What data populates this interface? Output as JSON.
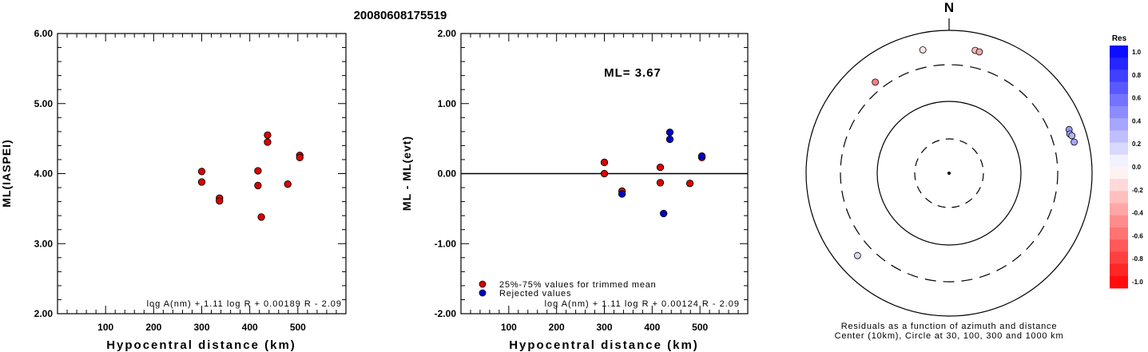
{
  "title": "20080608175519",
  "chart_data": [
    {
      "type": "scatter",
      "xlabel": "Hypocentral distance (km)",
      "ylabel": "ML(IASPEI)",
      "xlim": [
        0,
        600
      ],
      "ylim": [
        2.0,
        6.0
      ],
      "xticks": [
        100,
        200,
        300,
        400,
        500
      ],
      "yticks": [
        "2.00",
        "3.00",
        "4.00",
        "5.00",
        "6.00"
      ],
      "formula": "log A(nm) + 1.11 log R + 0.00189 R - 2.09",
      "series": [
        {
          "color": "#dd0000",
          "points": [
            [
              300,
              4.03
            ],
            [
              300,
              3.88
            ],
            [
              337,
              3.65
            ],
            [
              337,
              3.61
            ],
            [
              417,
              4.04
            ],
            [
              417,
              3.83
            ],
            [
              424,
              3.38
            ],
            [
              437,
              4.55
            ],
            [
              437,
              4.45
            ],
            [
              479,
              3.85
            ],
            [
              504,
              4.26
            ],
            [
              504,
              4.23
            ]
          ]
        }
      ]
    },
    {
      "type": "scatter",
      "xlabel": "Hypocentral distance (km)",
      "ylabel": "ML - ML(evt)",
      "xlim": [
        0,
        600
      ],
      "ylim": [
        -2.0,
        2.0
      ],
      "xticks": [
        100,
        200,
        300,
        400,
        500
      ],
      "yticks": [
        "-2.00",
        "-1.00",
        "0.00",
        "1.00",
        "2.00"
      ],
      "annotation": "ML= 3.67",
      "formula": "log A(nm) + 1.11 log R + 0.00124 R - 2.09",
      "legend": [
        {
          "label": "25%-75% values for trimmed mean",
          "color": "#dd0000"
        },
        {
          "label": "Rejected values",
          "color": "#0000cc"
        }
      ],
      "series": [
        {
          "name": "25%-75% values for trimmed mean",
          "color": "#dd0000",
          "points": [
            [
              300,
              0.16
            ],
            [
              300,
              0.0
            ],
            [
              337,
              -0.25
            ],
            [
              417,
              0.09
            ],
            [
              417,
              -0.13
            ],
            [
              479,
              -0.14
            ],
            [
              504,
              0.23
            ]
          ]
        },
        {
          "name": "Rejected values",
          "color": "#0000cc",
          "points": [
            [
              337,
              -0.29
            ],
            [
              424,
              -0.57
            ],
            [
              437,
              0.59
            ],
            [
              437,
              0.49
            ],
            [
              504,
              0.25
            ]
          ]
        }
      ]
    },
    {
      "type": "polar-scatter",
      "north_label": "N",
      "caption_line1": "Residuals as a function of azimuth and distance",
      "caption_line2": "Center (10km), Circle at 30, 100, 300 and 1000 km",
      "rings_km": [
        30,
        100,
        300,
        1000
      ],
      "points": [
        {
          "azimuth_deg": -12,
          "distance_km": 555,
          "residual": -0.1
        },
        {
          "azimuth_deg": -39,
          "distance_km": 406,
          "residual": -0.5
        },
        {
          "azimuth_deg": 12,
          "distance_km": 545,
          "residual": -0.25
        },
        {
          "azimuth_deg": 14,
          "distance_km": 535,
          "residual": -0.35
        },
        {
          "azimuth_deg": 70,
          "distance_km": 585,
          "residual": 0.4
        },
        {
          "azimuth_deg": 72,
          "distance_km": 570,
          "residual": 0.35
        },
        {
          "azimuth_deg": 73,
          "distance_km": 600,
          "residual": 0.3
        },
        {
          "azimuth_deg": 76,
          "distance_km": 610,
          "residual": 0.35
        },
        {
          "azimuth_deg": 228,
          "distance_km": 500,
          "residual": 0.15
        }
      ]
    }
  ],
  "colorbar": {
    "title": "Res",
    "labels": [
      "1.0",
      "0.8",
      "0.6",
      "0.4",
      "0.2",
      "0.0",
      "-0.2",
      "-0.4",
      "-0.6",
      "-0.8",
      "-1.0"
    ],
    "max_color": "#0000ff",
    "min_color": "#ff0000"
  }
}
